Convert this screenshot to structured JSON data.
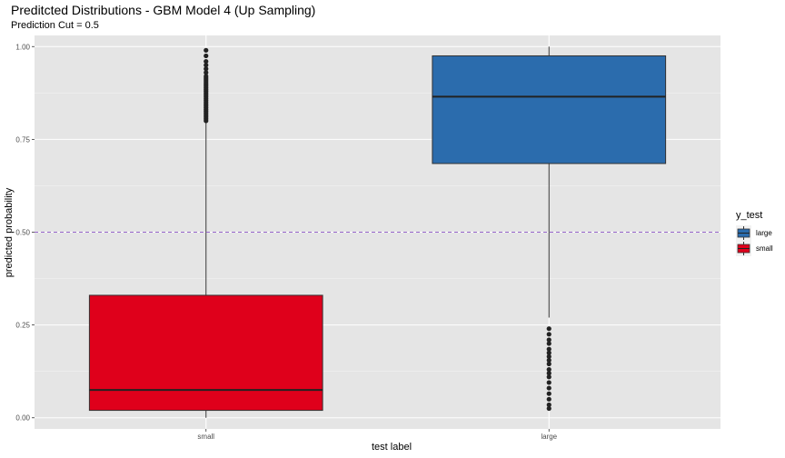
{
  "chart_data": {
    "type": "boxplot",
    "title": "Preditcted Distributions - GBM Model 4 (Up Sampling)",
    "subtitle": "Prediction Cut = 0.5",
    "xlabel": "test label",
    "ylabel": "predicted probability",
    "categories": [
      "small",
      "large"
    ],
    "ylim": [
      -0.03,
      1.03
    ],
    "yticks": [
      0.0,
      0.25,
      0.5,
      0.75,
      1.0
    ],
    "ytick_labels": [
      "0.00",
      "0.25",
      "0.50",
      "0.75",
      "1.00"
    ],
    "reference_line": {
      "y": 0.5,
      "style": "dashed",
      "color": "#9966cc"
    },
    "grid": true,
    "legend": {
      "title": "y_test",
      "position": "right",
      "entries": [
        {
          "label": "large",
          "color": "#2b6cad"
        },
        {
          "label": "small",
          "color": "#df001b"
        }
      ]
    },
    "boxes": [
      {
        "category": "small",
        "color": "#df001b",
        "whisker_low": 0.0,
        "q1": 0.02,
        "median": 0.075,
        "q3": 0.33,
        "whisker_high": 0.795,
        "outliers": [
          0.8,
          0.805,
          0.81,
          0.815,
          0.82,
          0.825,
          0.83,
          0.835,
          0.84,
          0.845,
          0.85,
          0.855,
          0.86,
          0.865,
          0.87,
          0.875,
          0.88,
          0.885,
          0.89,
          0.895,
          0.9,
          0.905,
          0.91,
          0.915,
          0.92,
          0.93,
          0.94,
          0.95,
          0.96,
          0.975,
          0.99
        ]
      },
      {
        "category": "large",
        "color": "#2b6cad",
        "whisker_low": 0.27,
        "q1": 0.685,
        "median": 0.865,
        "q3": 0.975,
        "whisker_high": 1.0,
        "outliers": [
          0.025,
          0.035,
          0.05,
          0.065,
          0.08,
          0.095,
          0.11,
          0.12,
          0.13,
          0.145,
          0.155,
          0.165,
          0.175,
          0.185,
          0.2,
          0.21,
          0.225,
          0.24
        ]
      }
    ]
  }
}
